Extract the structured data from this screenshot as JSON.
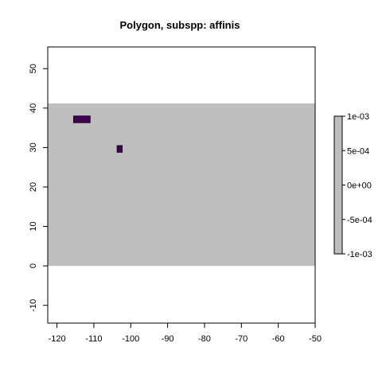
{
  "chart_data": {
    "type": "heatmap",
    "title": "Polygon, subspp: affinis",
    "xlabel": "",
    "ylabel": "",
    "xlim": [
      -122.5,
      -50
    ],
    "ylim": [
      -14.5,
      55.5
    ],
    "x_ticks": [
      -120,
      -110,
      -100,
      -90,
      -80,
      -70,
      -60,
      -50
    ],
    "y_ticks": [
      -10,
      0,
      10,
      20,
      30,
      40,
      50
    ],
    "raster_extent": {
      "x": [
        -122.5,
        -50
      ],
      "y": [
        0,
        41.2
      ]
    },
    "raster_color": "#bebebe",
    "cells": [
      {
        "x": [
          -115.5,
          -111
        ],
        "y": [
          36.3,
          38
        ],
        "color": "#440154"
      },
      {
        "x": [
          -103.7,
          -102.3
        ],
        "y": [
          28.8,
          30.5
        ],
        "color": "#440154"
      }
    ],
    "legend": {
      "placement": "right",
      "color": "#bebebe",
      "ticks": [
        "1e-03",
        "5e-04",
        "0e+00",
        "-5e-04",
        "-1e-03"
      ],
      "values": [
        0.001,
        0.0005,
        0,
        -0.0005,
        -0.001
      ]
    },
    "grid": false
  }
}
